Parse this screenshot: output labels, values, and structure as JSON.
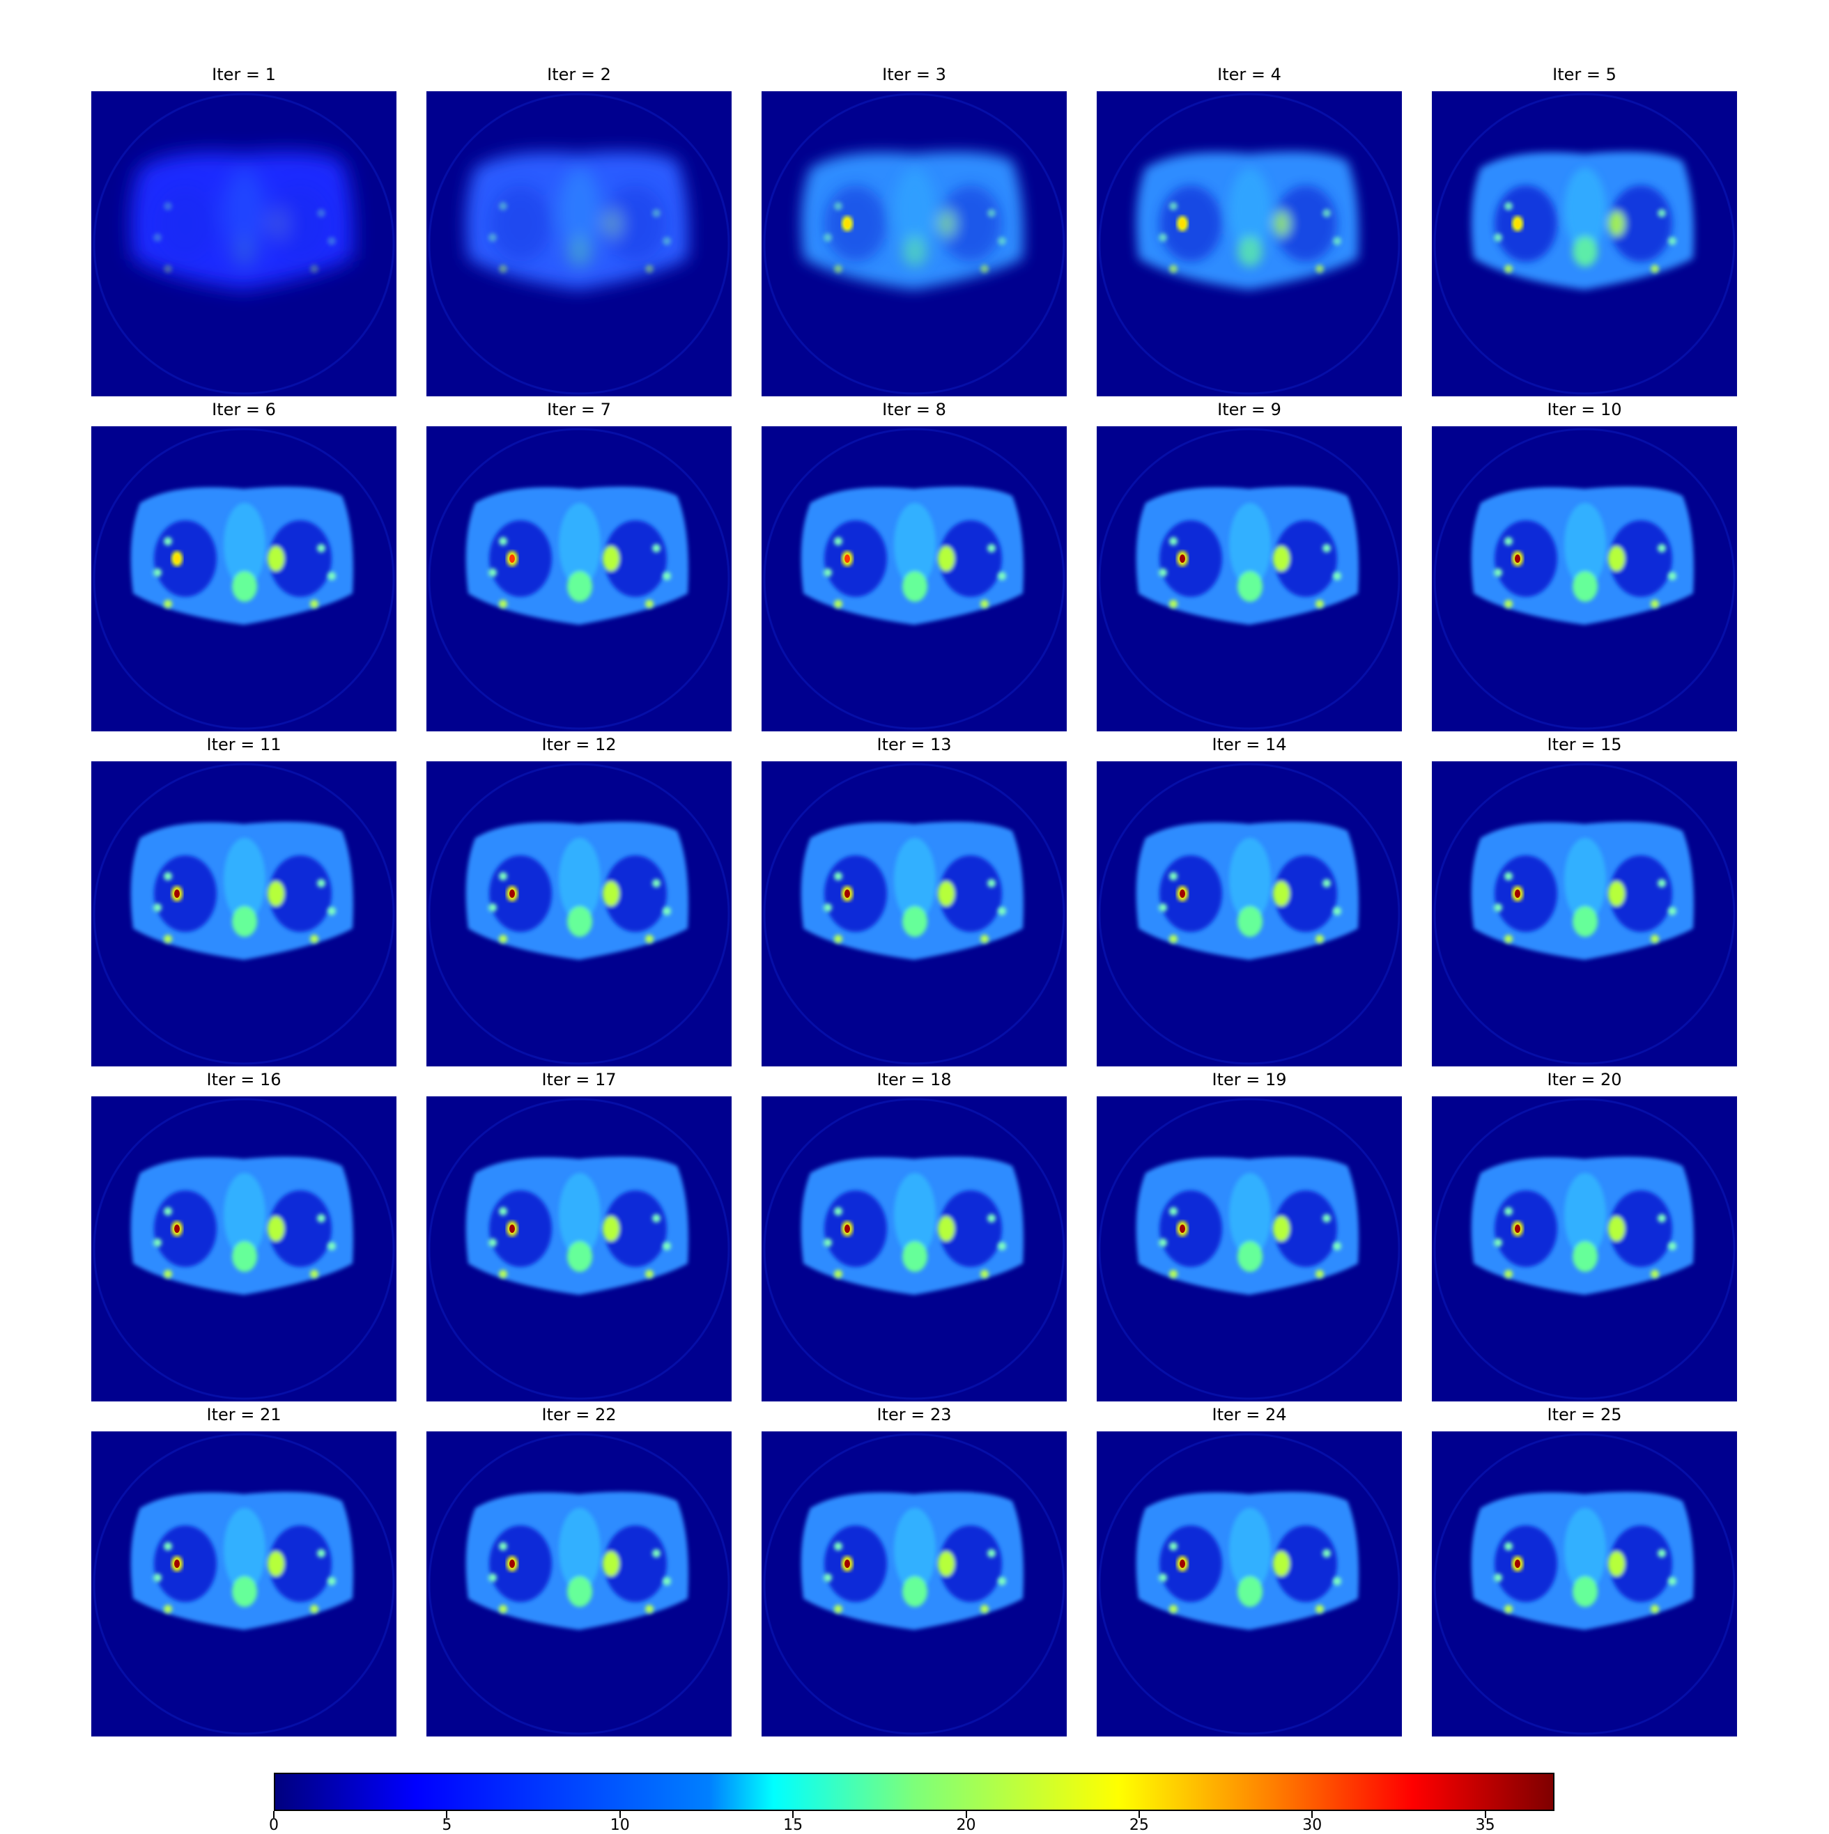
{
  "panels": [
    {
      "title": "Iter = 1"
    },
    {
      "title": "Iter = 2"
    },
    {
      "title": "Iter = 3"
    },
    {
      "title": "Iter = 4"
    },
    {
      "title": "Iter = 5"
    },
    {
      "title": "Iter = 6"
    },
    {
      "title": "Iter = 7"
    },
    {
      "title": "Iter = 8"
    },
    {
      "title": "Iter = 9"
    },
    {
      "title": "Iter = 10"
    },
    {
      "title": "Iter = 11"
    },
    {
      "title": "Iter = 12"
    },
    {
      "title": "Iter = 13"
    },
    {
      "title": "Iter = 14"
    },
    {
      "title": "Iter = 15"
    },
    {
      "title": "Iter = 16"
    },
    {
      "title": "Iter = 17"
    },
    {
      "title": "Iter = 18"
    },
    {
      "title": "Iter = 19"
    },
    {
      "title": "Iter = 20"
    },
    {
      "title": "Iter = 21"
    },
    {
      "title": "Iter = 22"
    },
    {
      "title": "Iter = 23"
    },
    {
      "title": "Iter = 24"
    },
    {
      "title": "Iter = 25"
    }
  ],
  "colorbar": {
    "colormap": "jet",
    "min": 0,
    "max": 37,
    "ticks": [
      "0",
      "5",
      "10",
      "15",
      "20",
      "25",
      "30",
      "35"
    ],
    "colors": {
      "low": "#00007f",
      "high": "#7f0000",
      "background": "#00008f"
    }
  }
}
